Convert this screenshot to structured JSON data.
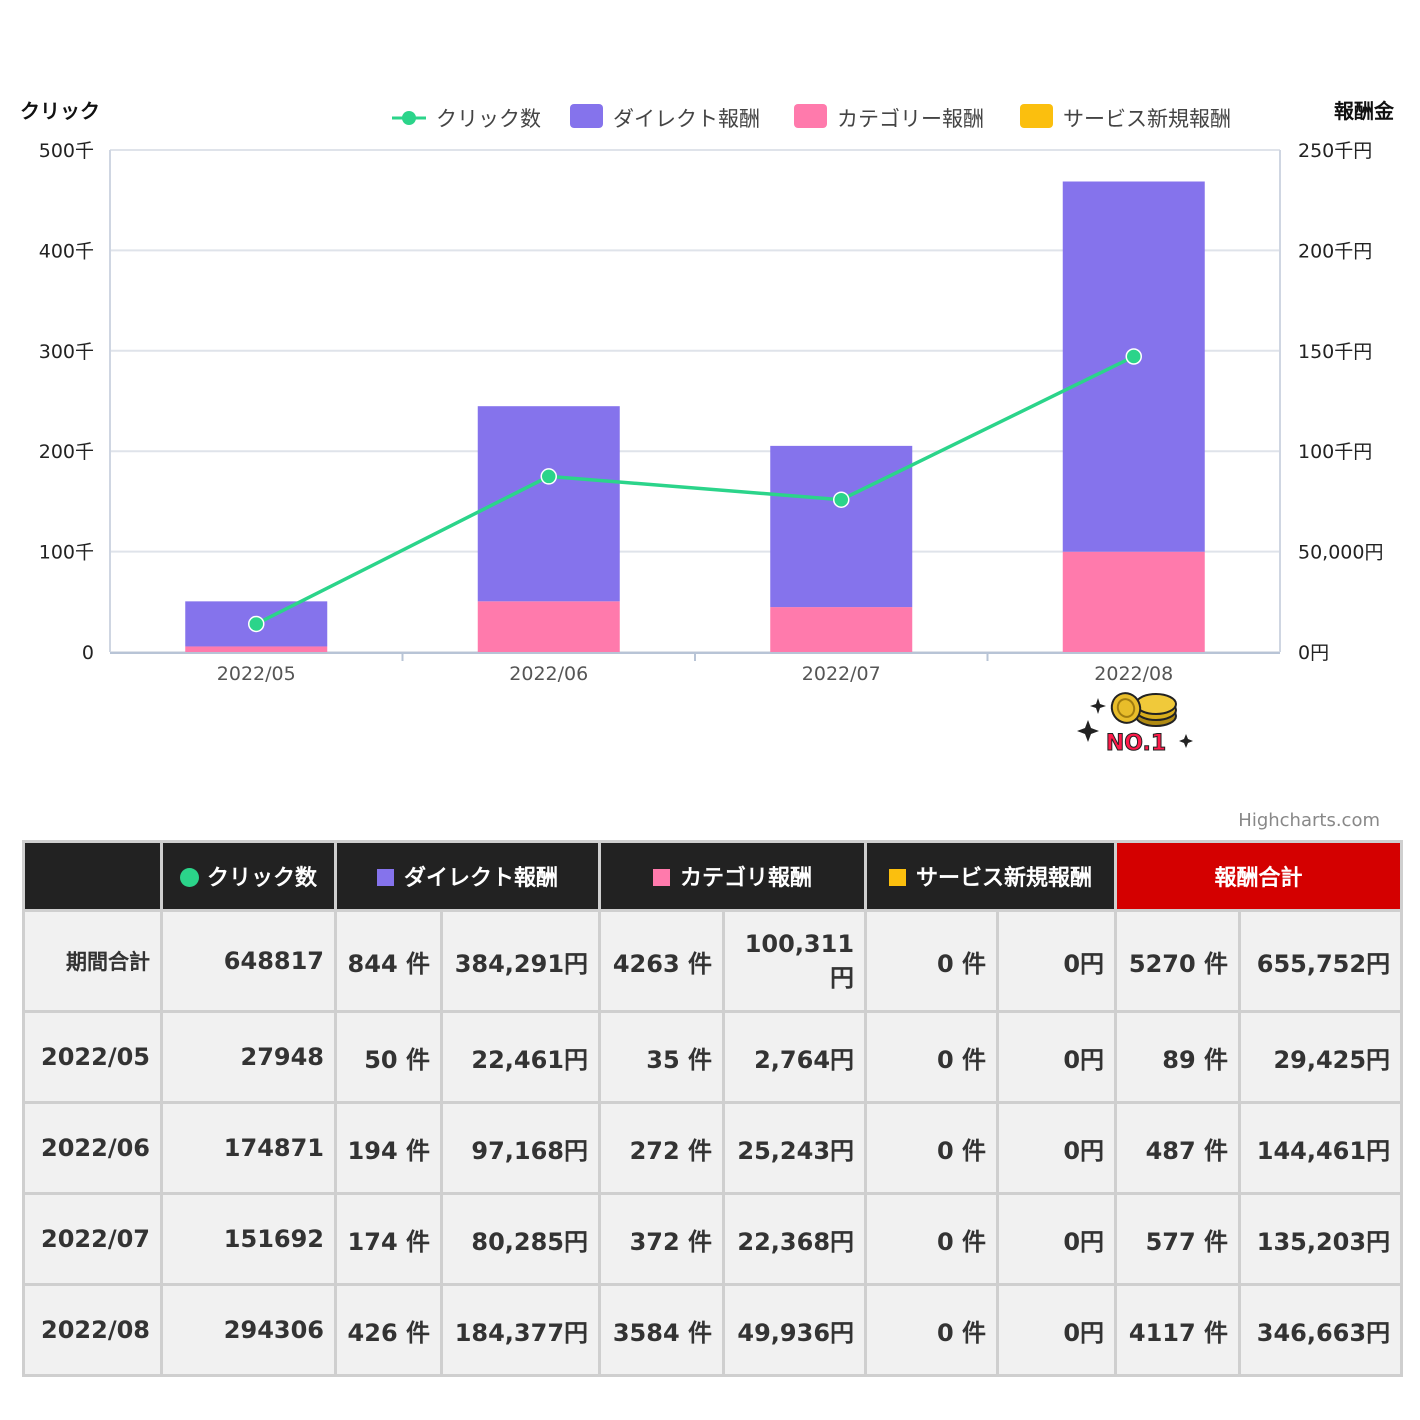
{
  "chart_data": {
    "type": "bar",
    "stacked": true,
    "categories": [
      "2022/05",
      "2022/06",
      "2022/07",
      "2022/08"
    ],
    "left_axis": {
      "title": "クリック",
      "ylim": [
        0,
        500000
      ],
      "ticks": [
        0,
        100000,
        200000,
        300000,
        400000,
        500000
      ],
      "tick_labels": [
        "0",
        "100千",
        "200千",
        "300千",
        "400千",
        "500千"
      ]
    },
    "right_axis": {
      "title": "報酬金",
      "ylim": [
        0,
        250000
      ],
      "ticks": [
        0,
        50000,
        100000,
        150000,
        200000,
        250000
      ],
      "tick_labels": [
        "0円",
        "50,000円",
        "100千円",
        "150千円",
        "200千円",
        "250千円"
      ]
    },
    "series": [
      {
        "name": "クリック数",
        "type": "line",
        "axis": "left",
        "color": "#2bd48a",
        "values": [
          27948,
          174871,
          151692,
          294306
        ]
      },
      {
        "name": "ダイレクト報酬",
        "type": "bar",
        "axis": "right",
        "color": "#8573ec",
        "values": [
          22461,
          97168,
          80285,
          184377
        ]
      },
      {
        "name": "カテゴリー報酬",
        "type": "bar",
        "axis": "right",
        "color": "#ff7aac",
        "values": [
          2764,
          25243,
          22368,
          49936
        ]
      },
      {
        "name": "サービス新規報酬",
        "type": "bar",
        "axis": "right",
        "color": "#fbbf0e",
        "values": [
          0,
          0,
          0,
          0
        ]
      }
    ],
    "legend": "top-right",
    "grid": true
  },
  "badge": {
    "text": "NO.1",
    "category": "2022/08"
  },
  "credit": "Highcharts.com",
  "table": {
    "headers": {
      "blank": "",
      "clicks": "クリック数",
      "direct": "ダイレクト報酬",
      "category": "カテゴリ報酬",
      "service": "サービス新規報酬",
      "total": "報酬合計"
    },
    "header_colors": {
      "clicks": "#2bd48a",
      "direct": "#8573ec",
      "category": "#ff7aac",
      "service": "#fbbf0e"
    },
    "rows": [
      {
        "label": "期間合計",
        "clicks": "648817",
        "direct_count": "844 件",
        "direct_amount": "384,291円",
        "category_count": "4263 件",
        "category_amount": "100,311円",
        "service_count": "0 件",
        "service_amount": "0円",
        "total_count": "5270 件",
        "total_amount": "655,752円"
      },
      {
        "label": "2022/05",
        "clicks": "27948",
        "direct_count": "50 件",
        "direct_amount": "22,461円",
        "category_count": "35 件",
        "category_amount": "2,764円",
        "service_count": "0 件",
        "service_amount": "0円",
        "total_count": "89 件",
        "total_amount": "29,425円"
      },
      {
        "label": "2022/06",
        "clicks": "174871",
        "direct_count": "194 件",
        "direct_amount": "97,168円",
        "category_count": "272 件",
        "category_amount": "25,243円",
        "service_count": "0 件",
        "service_amount": "0円",
        "total_count": "487 件",
        "total_amount": "144,461円"
      },
      {
        "label": "2022/07",
        "clicks": "151692",
        "direct_count": "174 件",
        "direct_amount": "80,285円",
        "category_count": "372 件",
        "category_amount": "22,368円",
        "service_count": "0 件",
        "service_amount": "0円",
        "total_count": "577 件",
        "total_amount": "135,203円"
      },
      {
        "label": "2022/08",
        "clicks": "294306",
        "direct_count": "426 件",
        "direct_amount": "184,377円",
        "category_count": "3584 件",
        "category_amount": "49,936円",
        "service_count": "0 件",
        "service_amount": "0円",
        "total_count": "4117 件",
        "total_amount": "346,663円"
      }
    ]
  }
}
